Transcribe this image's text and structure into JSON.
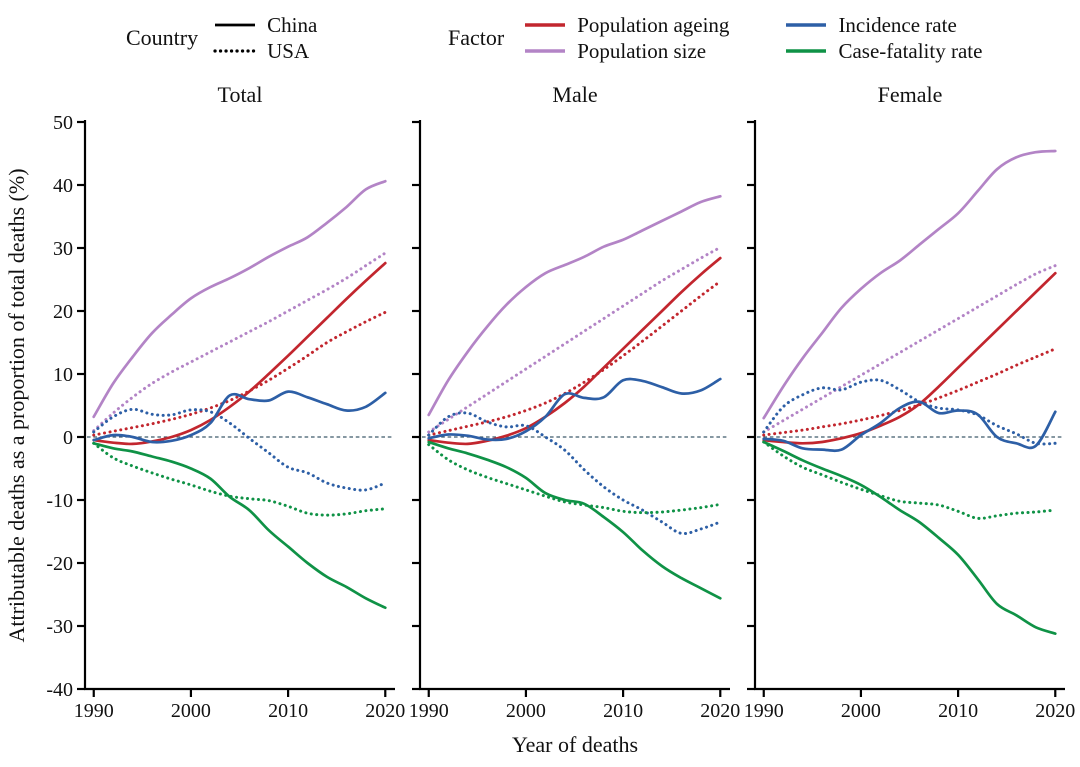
{
  "legend": {
    "country": {
      "label": "Country",
      "items": [
        {
          "label": "China",
          "line": "solid"
        },
        {
          "label": "USA",
          "line": "dotted"
        }
      ]
    },
    "factor": {
      "label": "Factor",
      "columns": [
        [
          {
            "label": "Population ageing",
            "color": "#c2262e"
          },
          {
            "label": "Population size",
            "color": "#b384c6"
          }
        ],
        [
          {
            "label": "Incidence rate",
            "color": "#2d5fa6"
          },
          {
            "label": "Case-fatality rate",
            "color": "#0f9246"
          }
        ]
      ]
    }
  },
  "chart_data": {
    "type": "line",
    "xlabel": "Year of deaths",
    "ylabel": "Attributable deaths as a proportion of total deaths (%)",
    "ylim": [
      -40,
      50
    ],
    "xlim": [
      1989.1,
      2021.0
    ],
    "grid": false,
    "zero_line": true,
    "y_ticks": [
      50,
      40,
      30,
      20,
      10,
      0,
      -10,
      -20,
      -30,
      -40
    ],
    "y_tick_labels": [
      "50",
      "40",
      "30",
      "20",
      "10",
      "0",
      "-10",
      "-20",
      "-30",
      "-40"
    ],
    "x_ticks": [
      1990,
      2000,
      2010,
      2020
    ],
    "x_tick_labels": [
      "1990",
      "2000",
      "2010",
      "2020"
    ],
    "x": [
      1990,
      1992,
      1994,
      1996,
      1998,
      2000,
      2002,
      2004,
      2006,
      2008,
      2010,
      2012,
      2014,
      2016,
      2018,
      2020
    ],
    "colors": {
      "population_ageing": "#c2262e",
      "population_size": "#b384c6",
      "incidence_rate": "#2d5fa6",
      "case_fatality_rate": "#0f9246",
      "zero_line": "#3f5a6b",
      "axis": "#000000"
    },
    "panels": [
      {
        "title": "Total",
        "series": [
          {
            "factor": "Population size",
            "country": "USA",
            "color": "#b384c6",
            "line": "dotted",
            "values": [
              1,
              3.8,
              6.3,
              8.5,
              10.3,
              11.9,
              13.5,
              15.1,
              16.7,
              18.3,
              20,
              21.7,
              23.4,
              25.2,
              27.2,
              29.2
            ]
          },
          {
            "factor": "Population size",
            "country": "China",
            "color": "#b384c6",
            "line": "solid",
            "values": [
              3.2,
              8.5,
              12.7,
              16.5,
              19.4,
              22,
              23.8,
              25.2,
              26.8,
              28.6,
              30.2,
              31.7,
              34,
              36.5,
              39.3,
              40.6
            ]
          },
          {
            "factor": "Population ageing",
            "country": "USA",
            "color": "#c2262e",
            "line": "dotted",
            "values": [
              0.3,
              0.9,
              1.5,
              2.1,
              2.8,
              3.6,
              4.6,
              5.8,
              7.3,
              9,
              10.9,
              12.9,
              15,
              16.7,
              18.3,
              19.8
            ]
          },
          {
            "factor": "Population ageing",
            "country": "China",
            "color": "#c2262e",
            "line": "solid",
            "values": [
              -0.5,
              -0.9,
              -1.1,
              -0.7,
              0,
              1.1,
              2.7,
              4.8,
              7.2,
              10,
              12.9,
              15.9,
              18.9,
              21.9,
              24.8,
              27.6
            ]
          },
          {
            "factor": "Incidence rate",
            "country": "USA",
            "color": "#2d5fa6",
            "line": "dotted",
            "values": [
              0.8,
              3.2,
              4.4,
              3.6,
              3.5,
              4.3,
              4,
              2.2,
              -0.2,
              -2.5,
              -4.8,
              -5.7,
              -7.3,
              -8.1,
              -8.4,
              -7.3
            ]
          },
          {
            "factor": "Case-fatality rate",
            "country": "USA",
            "color": "#0f9246",
            "line": "dotted",
            "values": [
              -1,
              -3.3,
              -4.6,
              -5.7,
              -6.7,
              -7.6,
              -8.6,
              -9.4,
              -9.8,
              -10.1,
              -11,
              -12.1,
              -12.4,
              -12.2,
              -11.7,
              -11.4
            ]
          },
          {
            "factor": "Case-fatality rate",
            "country": "China",
            "color": "#0f9246",
            "line": "solid",
            "values": [
              -1,
              -1.8,
              -2.3,
              -3.1,
              -3.9,
              -5,
              -6.6,
              -9.5,
              -11.6,
              -14.8,
              -17.4,
              -20,
              -22.2,
              -23.8,
              -25.6,
              -27.1
            ]
          },
          {
            "factor": "Incidence rate",
            "country": "China",
            "color": "#2d5fa6",
            "line": "solid",
            "values": [
              -0.5,
              0.3,
              0,
              -0.8,
              -0.6,
              0.3,
              2.2,
              6.6,
              6,
              5.8,
              7.2,
              6.3,
              5.2,
              4.2,
              4.8,
              7
            ]
          }
        ]
      },
      {
        "title": "Male",
        "series": [
          {
            "factor": "Population size",
            "country": "USA",
            "color": "#b384c6",
            "line": "dotted",
            "values": [
              0.8,
              2.8,
              4.8,
              6.8,
              8.8,
              10.8,
              12.8,
              14.8,
              16.8,
              18.8,
              20.8,
              22.8,
              24.8,
              26.6,
              28.4,
              30.1
            ]
          },
          {
            "factor": "Population size",
            "country": "China",
            "color": "#b384c6",
            "line": "solid",
            "values": [
              3.5,
              9,
              13.5,
              17.5,
              21,
              23.8,
              26,
              27.3,
              28.6,
              30.2,
              31.3,
              32.8,
              34.3,
              35.8,
              37.3,
              38.2
            ]
          },
          {
            "factor": "Population ageing",
            "country": "USA",
            "color": "#c2262e",
            "line": "dotted",
            "values": [
              0.3,
              1,
              1.7,
              2.4,
              3.2,
              4.2,
              5.4,
              6.9,
              8.7,
              10.7,
              12.9,
              15.2,
              17.6,
              20,
              22.4,
              24.7
            ]
          },
          {
            "factor": "Population ageing",
            "country": "China",
            "color": "#c2262e",
            "line": "solid",
            "values": [
              -0.5,
              -0.9,
              -1.1,
              -0.6,
              0.2,
              1.4,
              3.2,
              5.4,
              8,
              11,
              14,
              17,
              20,
              23,
              25.8,
              28.4
            ]
          },
          {
            "factor": "Incidence rate",
            "country": "USA",
            "color": "#2d5fa6",
            "line": "dotted",
            "values": [
              0.3,
              3.2,
              3.8,
              2.4,
              1.6,
              1.8,
              0,
              -2.1,
              -5.2,
              -7.9,
              -10,
              -11.6,
              -13.5,
              -15.3,
              -14.6,
              -13.5
            ]
          },
          {
            "factor": "Case-fatality rate",
            "country": "USA",
            "color": "#0f9246",
            "line": "dotted",
            "values": [
              -1.2,
              -3.6,
              -5.2,
              -6.4,
              -7.4,
              -8.4,
              -9.4,
              -10.3,
              -10.8,
              -11.2,
              -11.8,
              -12,
              -11.9,
              -11.6,
              -11.2,
              -10.7
            ]
          },
          {
            "factor": "Case-fatality rate",
            "country": "China",
            "color": "#0f9246",
            "line": "solid",
            "values": [
              -0.8,
              -1.8,
              -2.6,
              -3.6,
              -4.8,
              -6.5,
              -8.9,
              -10,
              -10.6,
              -12.7,
              -15.1,
              -18,
              -20.5,
              -22.4,
              -24,
              -25.6
            ]
          },
          {
            "factor": "Incidence rate",
            "country": "China",
            "color": "#2d5fa6",
            "line": "solid",
            "values": [
              -0.2,
              0.4,
              0.2,
              -0.4,
              -0.3,
              0.9,
              3.2,
              6.8,
              6.2,
              6.3,
              9,
              8.9,
              7.9,
              6.9,
              7.4,
              9.2
            ]
          }
        ]
      },
      {
        "title": "Female",
        "series": [
          {
            "factor": "Population size",
            "country": "USA",
            "color": "#b384c6",
            "line": "dotted",
            "values": [
              0.8,
              2.6,
              4.4,
              6.2,
              8,
              9.8,
              11.6,
              13.4,
              15.2,
              17,
              18.8,
              20.6,
              22.4,
              24.2,
              25.9,
              27.2
            ]
          },
          {
            "factor": "Population size",
            "country": "China",
            "color": "#b384c6",
            "line": "solid",
            "values": [
              3,
              8,
              12.5,
              16.5,
              20.5,
              23.5,
              26,
              28,
              30.5,
              33,
              35.5,
              39,
              42.5,
              44.4,
              45.2,
              45.4
            ]
          },
          {
            "factor": "Population ageing",
            "country": "USA",
            "color": "#c2262e",
            "line": "dotted",
            "values": [
              0.3,
              0.7,
              1.1,
              1.6,
              2.1,
              2.7,
              3.4,
              4.2,
              5.1,
              6.2,
              7.4,
              8.7,
              10,
              11.4,
              12.7,
              14
            ]
          },
          {
            "factor": "Population ageing",
            "country": "China",
            "color": "#c2262e",
            "line": "solid",
            "values": [
              -0.5,
              -0.8,
              -1,
              -0.8,
              -0.2,
              0.6,
              1.8,
              3.2,
              5.2,
              8,
              11,
              14,
              17,
              20,
              23,
              26
            ]
          },
          {
            "factor": "Incidence rate",
            "country": "USA",
            "color": "#2d5fa6",
            "line": "dotted",
            "values": [
              0.8,
              4.8,
              6.7,
              7.8,
              7.5,
              8.7,
              9,
              7.5,
              5.6,
              4.6,
              4.3,
              3.5,
              1.8,
              0.5,
              -1,
              -1
            ]
          },
          {
            "factor": "Case-fatality rate",
            "country": "USA",
            "color": "#0f9246",
            "line": "dotted",
            "values": [
              -0.8,
              -3,
              -4.8,
              -6,
              -7.2,
              -8.3,
              -9.3,
              -10.2,
              -10.5,
              -10.8,
              -11.8,
              -12.9,
              -12.5,
              -12.1,
              -11.9,
              -11.6
            ]
          },
          {
            "factor": "Case-fatality rate",
            "country": "China",
            "color": "#0f9246",
            "line": "solid",
            "values": [
              -0.8,
              -2.2,
              -3.7,
              -5,
              -6.2,
              -7.6,
              -9.5,
              -11.6,
              -13.5,
              -16,
              -18.7,
              -22.5,
              -26.5,
              -28.3,
              -30.2,
              -31.2
            ]
          },
          {
            "factor": "Incidence rate",
            "country": "China",
            "color": "#2d5fa6",
            "line": "solid",
            "values": [
              -0.3,
              -0.6,
              -1.8,
              -2,
              -2,
              0.3,
              2.2,
              4.6,
              5.6,
              3.8,
              4.2,
              3.6,
              0,
              -1,
              -1.4,
              4
            ]
          }
        ]
      }
    ]
  }
}
